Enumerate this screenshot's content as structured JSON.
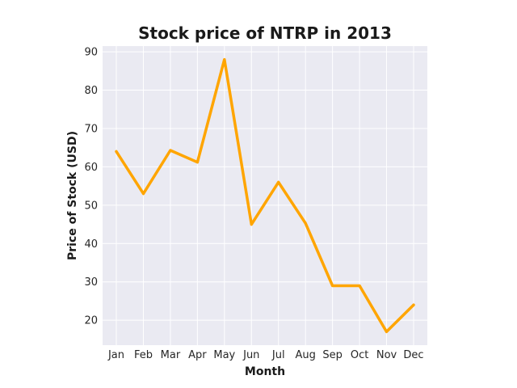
{
  "chart_data": {
    "type": "line",
    "title": "Stock price of NTRP in 2013",
    "xlabel": "Month",
    "ylabel": "Price of Stock (USD)",
    "categories": [
      "Jan",
      "Feb",
      "Mar",
      "Apr",
      "May",
      "Jun",
      "Jul",
      "Aug",
      "Sep",
      "Oct",
      "Nov",
      "Dec"
    ],
    "series": [
      {
        "values": [
          64,
          53,
          64.3,
          61.2,
          88,
          45,
          56,
          45.3,
          29,
          29,
          17,
          24
        ]
      }
    ],
    "ylim": [
      13.5,
      91.5
    ],
    "yticks": [
      20,
      30,
      40,
      50,
      60,
      70,
      80,
      90
    ],
    "grid": true,
    "line_color": "#FFA500",
    "background_color": "#EAEAF2",
    "grid_color": "#FFFFFF"
  }
}
